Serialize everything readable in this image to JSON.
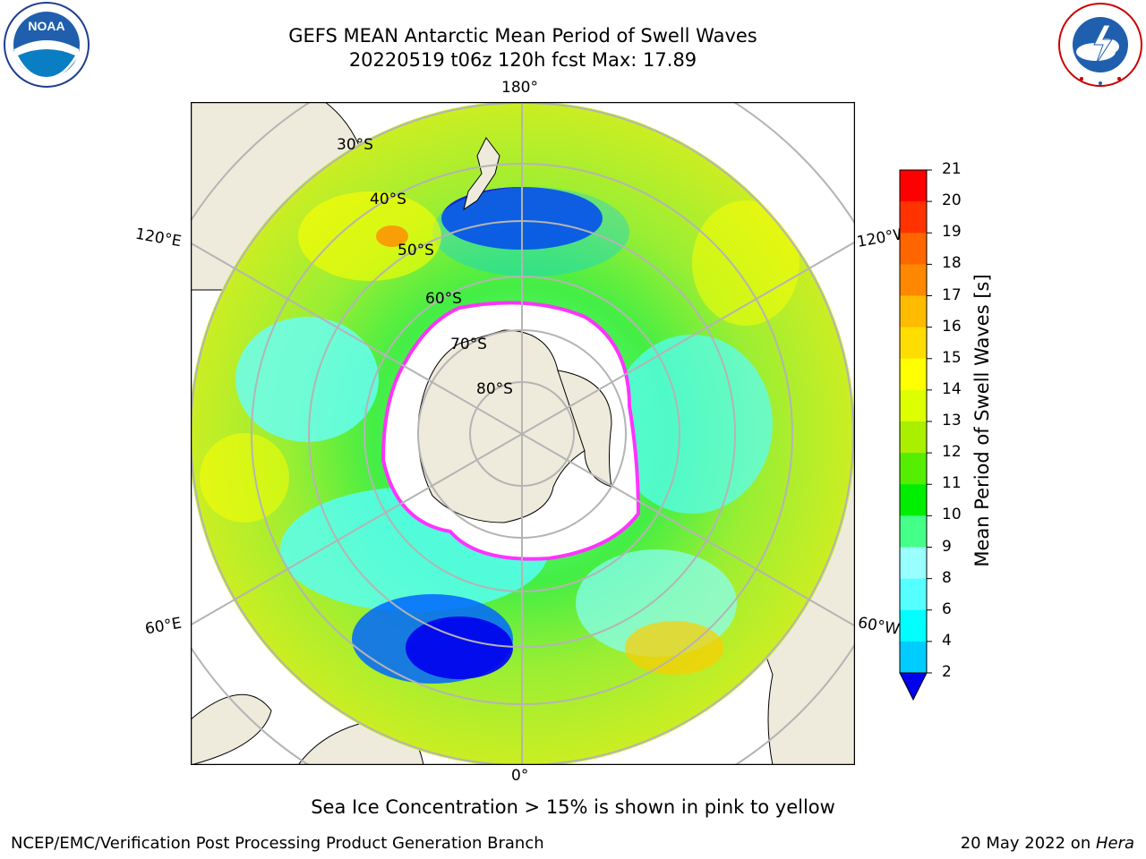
{
  "header": {
    "title_line1": "GEFS MEAN Antarctic Mean Period of Swell Waves",
    "title_line2": "20220519 t06z 120h fcst   Max: 17.89"
  },
  "logos": {
    "left": {
      "icon": "noaa-logo-icon",
      "text": "NOAA"
    },
    "right": {
      "icon": "nws-logo-icon",
      "text": "NATIONAL WEATHER SERVICE"
    }
  },
  "map": {
    "projection": "south-polar-stereographic",
    "longitude_labels": {
      "top": "180°",
      "bottom": "0°",
      "upper_left": "120°E",
      "upper_right": "120°W",
      "lower_left": "60°E",
      "lower_right": "60°W"
    },
    "latitude_labels": [
      "30°S",
      "40°S",
      "50°S",
      "60°S",
      "70°S",
      "80°S"
    ],
    "colors": {
      "land": "#efebdc",
      "ice": "#ffffff",
      "grid": "#b4b4b4",
      "ice_edge": "#ff33ff"
    }
  },
  "colorbar": {
    "label": "Mean Period of Swell Waves [s]",
    "ticks": [
      "21",
      "20",
      "19",
      "18",
      "17",
      "16",
      "15",
      "14",
      "13",
      "12",
      "11",
      "10",
      "9",
      "8",
      "6",
      "4",
      "2"
    ],
    "colors": [
      "#0000ee",
      "#0066ff",
      "#00ccff",
      "#00ffff",
      "#55ffff",
      "#99ffff",
      "#44ff88",
      "#00ee00",
      "#55ee00",
      "#aaee00",
      "#ddff00",
      "#ffff00",
      "#ffdd00",
      "#ffbb00",
      "#ff8800",
      "#ff6600",
      "#ff3300",
      "#ff0000"
    ]
  },
  "subtitle": "Sea Ice Concentration > 15% is shown in pink to yellow",
  "footer": {
    "left": "NCEP/EMC/Verification Post Processing Product Generation Branch",
    "right_date": "20 May 2022 on ",
    "right_host": "Hera"
  }
}
